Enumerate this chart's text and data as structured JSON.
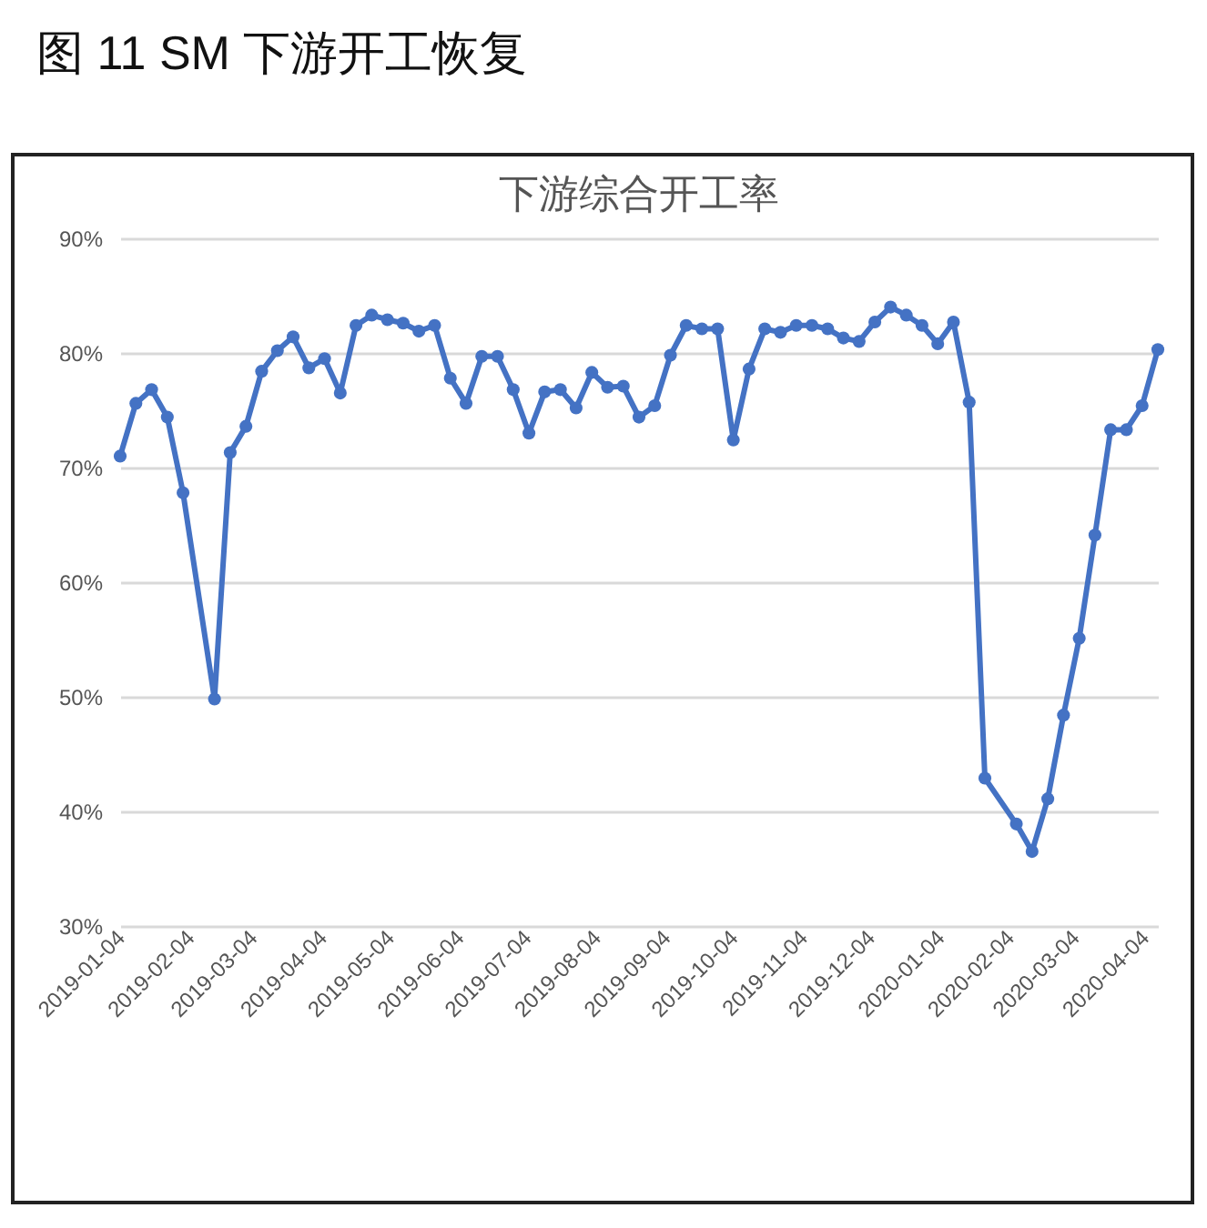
{
  "chart_data": {
    "type": "line",
    "title": "图 11 SM 下游开工恢复",
    "subtitle": "下游综合开工率",
    "x": [
      "2019-01-04",
      "2019-01-11",
      "2019-01-18",
      "2019-01-25",
      "2019-02-01",
      "2019-02-15",
      "2019-02-22",
      "2019-03-01",
      "2019-03-08",
      "2019-03-15",
      "2019-03-22",
      "2019-03-29",
      "2019-04-05",
      "2019-04-12",
      "2019-04-19",
      "2019-04-26",
      "2019-05-03",
      "2019-05-10",
      "2019-05-17",
      "2019-05-24",
      "2019-05-31",
      "2019-06-07",
      "2019-06-14",
      "2019-06-21",
      "2019-06-28",
      "2019-07-05",
      "2019-07-12",
      "2019-07-19",
      "2019-07-26",
      "2019-08-02",
      "2019-08-09",
      "2019-08-16",
      "2019-08-23",
      "2019-08-30",
      "2019-09-06",
      "2019-09-13",
      "2019-09-20",
      "2019-09-27",
      "2019-10-04",
      "2019-10-11",
      "2019-10-18",
      "2019-10-25",
      "2019-11-01",
      "2019-11-08",
      "2019-11-15",
      "2019-11-22",
      "2019-11-29",
      "2019-12-06",
      "2019-12-13",
      "2019-12-20",
      "2019-12-27",
      "2020-01-03",
      "2020-01-10",
      "2020-01-17",
      "2020-01-24",
      "2020-02-07",
      "2020-02-14",
      "2020-02-21",
      "2020-02-28",
      "2020-03-06",
      "2020-03-13",
      "2020-03-20",
      "2020-03-27",
      "2020-04-03",
      "2020-04-10"
    ],
    "series": [
      {
        "color": "#4472c4",
        "values": [
          71.0,
          75.6,
          76.8,
          74.4,
          67.8,
          49.8,
          71.3,
          73.6,
          78.4,
          80.2,
          81.4,
          78.7,
          79.5,
          76.5,
          82.4,
          83.3,
          82.9,
          82.6,
          81.9,
          82.4,
          77.8,
          75.6,
          79.7,
          79.7,
          76.8,
          73.0,
          76.6,
          76.8,
          75.2,
          78.3,
          77.0,
          77.1,
          74.4,
          75.4,
          79.8,
          82.4,
          82.1,
          82.1,
          72.4,
          78.6,
          82.1,
          81.8,
          82.4,
          82.4,
          82.1,
          81.3,
          81.0,
          82.7,
          84.0,
          83.3,
          82.4,
          80.8,
          82.7,
          75.7,
          42.9,
          38.9,
          36.5,
          41.1,
          48.4,
          55.1,
          64.1,
          73.3,
          73.3,
          75.4,
          80.3
        ]
      }
    ],
    "xlim": [
      "2019-01-04",
      "2020-04-10"
    ],
    "xticks": [
      "2019-01-04",
      "2019-02-04",
      "2019-03-04",
      "2019-04-04",
      "2019-05-04",
      "2019-06-04",
      "2019-07-04",
      "2019-08-04",
      "2019-09-04",
      "2019-10-04",
      "2019-11-04",
      "2019-12-04",
      "2020-01-04",
      "2020-02-04",
      "2020-03-04",
      "2020-04-04"
    ],
    "ylim": [
      30,
      90
    ],
    "yticks": [
      {
        "value": 30,
        "label": "30%"
      },
      {
        "value": 40,
        "label": "40%"
      },
      {
        "value": 50,
        "label": "50%"
      },
      {
        "value": 60,
        "label": "60%"
      },
      {
        "value": 70,
        "label": "70%"
      },
      {
        "value": 80,
        "label": "80%"
      },
      {
        "value": 90,
        "label": "90%"
      }
    ],
    "grid": "y",
    "marker": "circle",
    "line_style": "solid"
  }
}
